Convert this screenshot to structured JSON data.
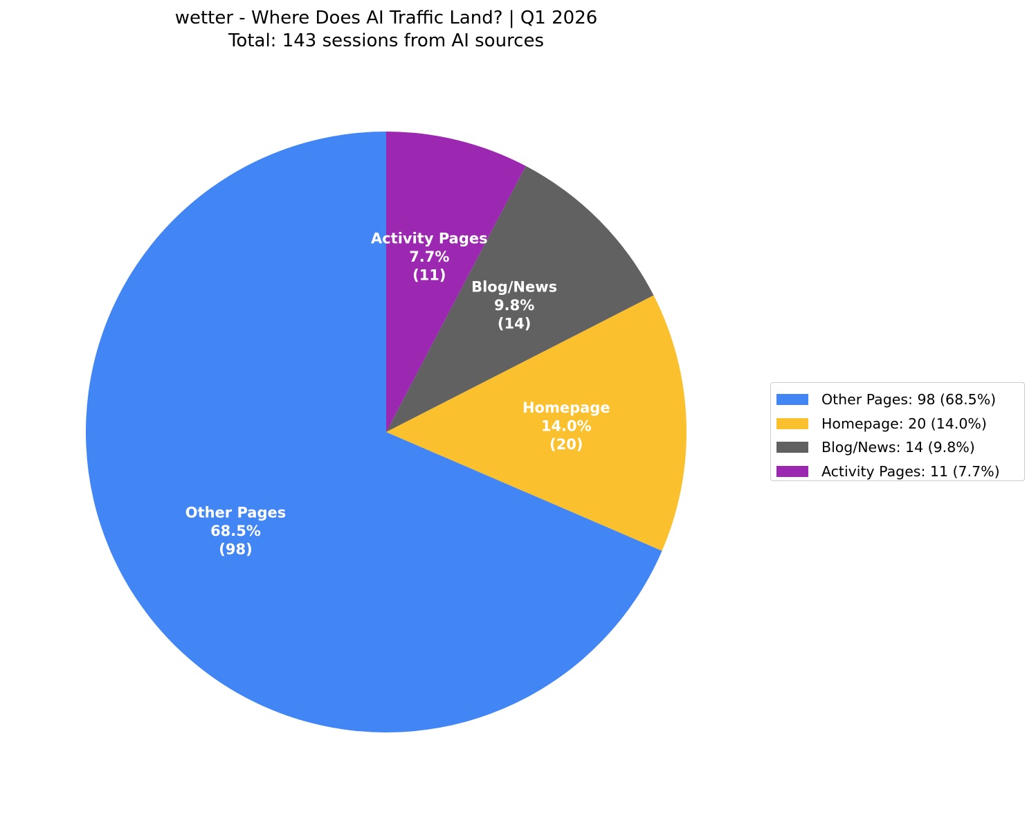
{
  "chart_data": {
    "type": "pie",
    "title": "wetter - Where Does AI Traffic Land? | Q1 2026",
    "subtitle": "Total: 143 sessions from AI sources",
    "total": 143,
    "slices": [
      {
        "label": "Other Pages",
        "value": 98,
        "percent": "68.5%",
        "color": "#4285f4",
        "legend": "Other Pages: 98 (68.5%)",
        "slice_label": [
          "Other Pages",
          "68.5%",
          "(98)"
        ]
      },
      {
        "label": "Homepage",
        "value": 20,
        "percent": "14.0%",
        "color": "#fbc02d",
        "legend": "Homepage: 20 (14.0%)",
        "slice_label": [
          "Homepage",
          "14.0%",
          "(20)"
        ]
      },
      {
        "label": "Blog/News",
        "value": 14,
        "percent": "9.8%",
        "color": "#616161",
        "legend": "Blog/News: 14 (9.8%)",
        "slice_label": [
          "Blog/News",
          "9.8%",
          "(14)"
        ]
      },
      {
        "label": "Activity Pages",
        "value": 11,
        "percent": "7.7%",
        "color": "#9c27b0",
        "legend": "Activity Pages: 11 (7.7%)",
        "slice_label": [
          "Activity Pages",
          "7.7%",
          "(11)"
        ]
      }
    ],
    "start_angle": "top",
    "direction": "counterclockwise",
    "legend_position": "right"
  }
}
